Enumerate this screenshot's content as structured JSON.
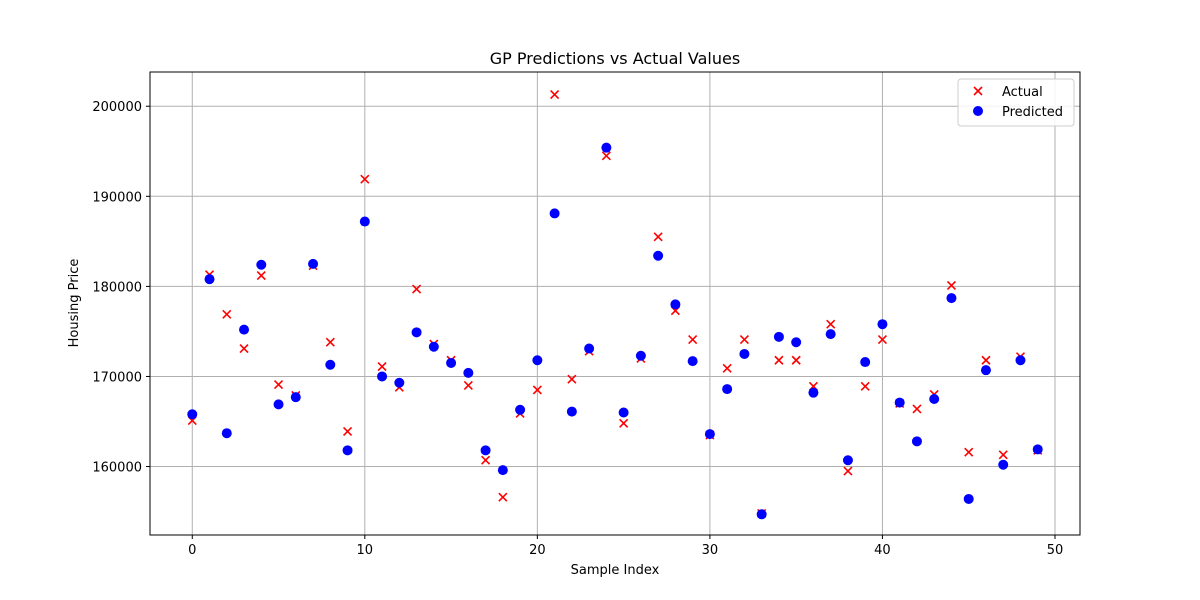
{
  "chart_data": {
    "type": "scatter",
    "title": "GP Predictions vs Actual Values",
    "xlabel": "Sample Index",
    "ylabel": "Housing Price",
    "xlim": [
      -2.45,
      51.45
    ],
    "ylim": [
      152400,
      203800
    ],
    "xticks": [
      0,
      10,
      20,
      30,
      40,
      50
    ],
    "yticks": [
      160000,
      170000,
      180000,
      190000,
      200000
    ],
    "grid": true,
    "legend": "top-right",
    "x": [
      0,
      1,
      2,
      3,
      4,
      5,
      6,
      7,
      8,
      9,
      10,
      11,
      12,
      13,
      14,
      15,
      16,
      17,
      18,
      19,
      20,
      21,
      22,
      23,
      24,
      25,
      26,
      27,
      28,
      29,
      30,
      31,
      32,
      33,
      34,
      35,
      36,
      37,
      38,
      39,
      40,
      41,
      42,
      43,
      44,
      45,
      46,
      47,
      48,
      49
    ],
    "series": [
      {
        "name": "Actual",
        "marker": "x",
        "color": "#ff0000",
        "values": [
          165100,
          181300,
          176900,
          173100,
          181200,
          169100,
          167900,
          182300,
          173800,
          163900,
          191900,
          171100,
          168800,
          179700,
          173600,
          171800,
          169000,
          160700,
          156600,
          165900,
          168500,
          201300,
          169700,
          172800,
          194500,
          164800,
          172000,
          185500,
          177300,
          174100,
          163500,
          170900,
          174100,
          154800,
          171800,
          171800,
          168900,
          175800,
          159500,
          168900,
          174100,
          167000,
          166400,
          168000,
          180100,
          161600,
          171800,
          161300,
          172200,
          161800
        ]
      },
      {
        "name": "Predicted",
        "marker": "o",
        "color": "#0000ff",
        "values": [
          165800,
          180800,
          163700,
          175200,
          182400,
          166900,
          167700,
          182500,
          171300,
          161800,
          187200,
          170000,
          169300,
          174900,
          173300,
          171500,
          170400,
          161800,
          159600,
          166300,
          171800,
          188100,
          166100,
          173100,
          195400,
          166000,
          172300,
          183400,
          178000,
          171700,
          163600,
          168600,
          172500,
          154700,
          174400,
          173800,
          168200,
          174700,
          160700,
          171600,
          175800,
          167100,
          162800,
          167500,
          178700,
          156400,
          170700,
          160200,
          171800,
          161900
        ]
      }
    ]
  }
}
